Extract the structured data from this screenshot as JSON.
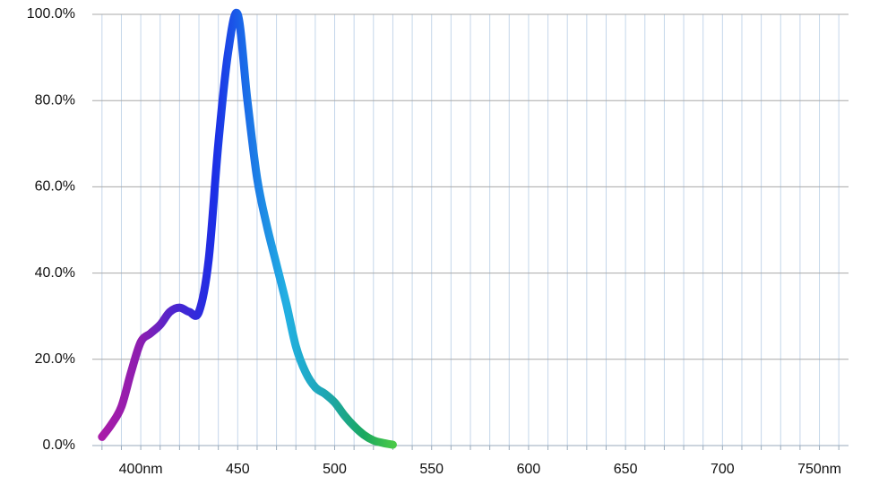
{
  "chart_data": {
    "type": "line",
    "x": [
      380,
      385,
      390,
      395,
      400,
      405,
      410,
      415,
      420,
      425,
      430,
      435,
      440,
      445,
      450,
      455,
      460,
      465,
      470,
      475,
      480,
      485,
      490,
      495,
      500,
      505,
      510,
      515,
      520,
      525,
      530
    ],
    "series": [
      {
        "values": [
          2,
          5,
          9,
          17,
          24,
          26,
          28,
          31,
          32,
          31,
          31,
          43,
          70,
          91,
          100,
          80,
          62,
          51,
          42,
          33,
          23,
          17,
          13.5,
          12,
          10,
          7,
          4.5,
          2.5,
          1.2,
          0.6,
          0.2
        ]
      }
    ],
    "gradient_stops": [
      {
        "x": 380,
        "color": "#a81ca8"
      },
      {
        "x": 400,
        "color": "#8c1eb0"
      },
      {
        "x": 418,
        "color": "#4a26d0"
      },
      {
        "x": 438,
        "color": "#1c2ee6"
      },
      {
        "x": 452,
        "color": "#1a66e8"
      },
      {
        "x": 475,
        "color": "#22b0e2"
      },
      {
        "x": 495,
        "color": "#1ea6b4"
      },
      {
        "x": 515,
        "color": "#1aa860"
      },
      {
        "x": 530,
        "color": "#48c848"
      }
    ],
    "xlim": [
      375,
      765
    ],
    "xticks": [
      {
        "value": 400,
        "label": "400nm"
      },
      450,
      500,
      550,
      600,
      650,
      700,
      {
        "value": 750,
        "label": "750nm"
      }
    ],
    "xminorticks": [
      380,
      390,
      400,
      410,
      420,
      430,
      440,
      450,
      460,
      470,
      480,
      490,
      500,
      510,
      520,
      530,
      540,
      550,
      560,
      570,
      580,
      590,
      600,
      610,
      620,
      630,
      640,
      650,
      660,
      670,
      680,
      690,
      700,
      710,
      720,
      730,
      740,
      750,
      760
    ],
    "ylim": [
      0,
      100
    ],
    "yticks": [
      {
        "value": 0,
        "label": "0.0%"
      },
      {
        "value": 20,
        "label": "20.0%"
      },
      {
        "value": 40,
        "label": "40.0%"
      },
      {
        "value": 60,
        "label": "60.0%"
      },
      {
        "value": 80,
        "label": "80.0%"
      },
      {
        "value": 100,
        "label": "100.0%"
      }
    ],
    "grid": true
  }
}
